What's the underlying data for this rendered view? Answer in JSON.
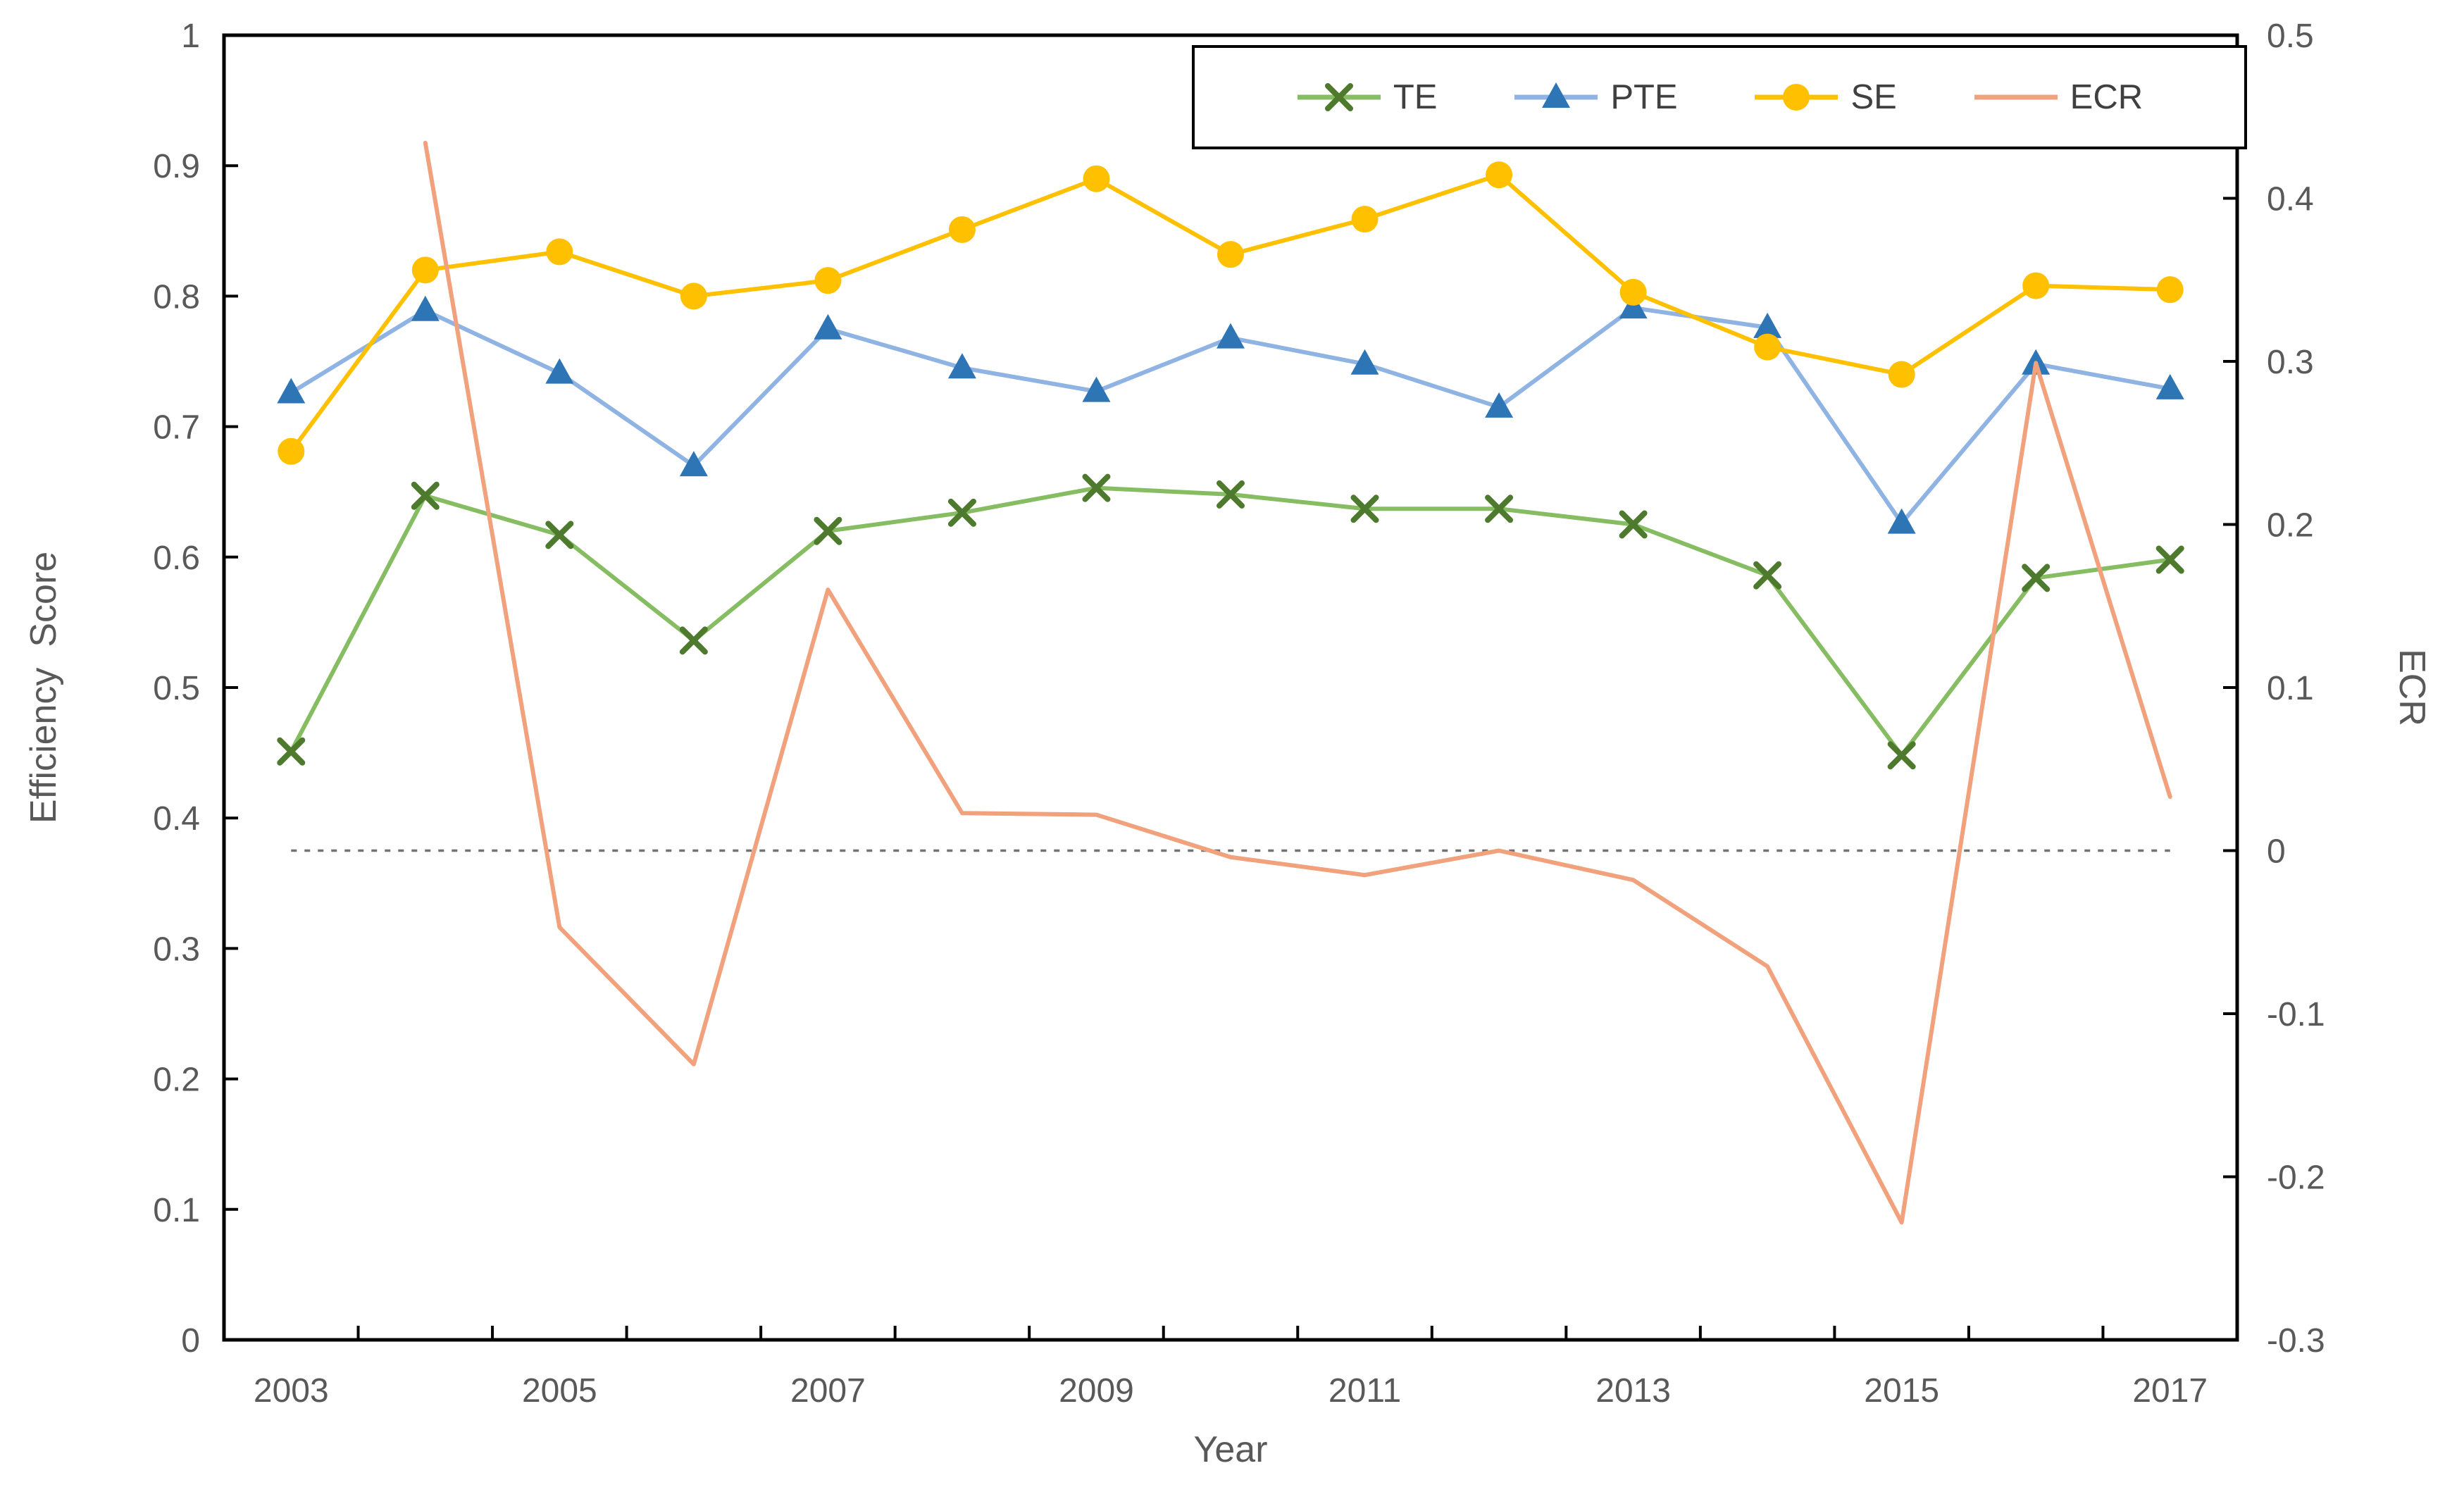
{
  "chart_data": {
    "type": "line",
    "title": "",
    "x": {
      "label": "Year",
      "categories": [
        "2003",
        "2004",
        "2005",
        "2006",
        "2007",
        "2008",
        "2009",
        "2010",
        "2011",
        "2012",
        "2013",
        "2014",
        "2015",
        "2016",
        "2017"
      ],
      "label_indices": [
        0,
        2,
        4,
        6,
        8,
        10,
        12,
        14
      ]
    },
    "y_left": {
      "label": "Efficiency  Score",
      "min": 0,
      "max": 1,
      "tick_values": [
        0,
        0.1,
        0.2,
        0.3,
        0.4,
        0.5,
        0.6,
        0.7,
        0.8,
        0.9,
        1
      ],
      "tick_labels": [
        "0",
        "0.1",
        "0.2",
        "0.3",
        "0.4",
        "0.5",
        "0.6",
        "0.7",
        "0.8",
        "0.9",
        "1"
      ]
    },
    "y_right": {
      "label": "ECR",
      "min": -0.3,
      "max": 0.5,
      "tick_values": [
        0.5,
        0.4,
        0.3,
        0.2,
        0.1,
        0,
        -0.1,
        -0.2,
        -0.3
      ],
      "tick_labels": [
        "0.5",
        "0.4",
        "0.3",
        "0.2",
        "0.1",
        "0",
        "-0.1",
        "-0.2",
        "-0.3"
      ]
    },
    "zero_reference_line": {
      "axis": "right",
      "value": 0,
      "style": "dotted",
      "color": "#737373"
    },
    "series": [
      {
        "name": "TE",
        "axis": "left",
        "marker": "x",
        "line_color": "#87BD62",
        "marker_color": "#4E7A2D",
        "values": [
          0.451,
          0.647,
          0.617,
          0.536,
          0.62,
          0.634,
          0.653,
          0.648,
          0.637,
          0.637,
          0.625,
          0.586,
          0.448,
          0.584,
          0.598
        ]
      },
      {
        "name": "PTE",
        "axis": "left",
        "marker": "triangle",
        "line_color": "#8FB4E3",
        "marker_color": "#2E75B6",
        "values": [
          0.726,
          0.789,
          0.741,
          0.67,
          0.775,
          0.745,
          0.727,
          0.768,
          0.748,
          0.715,
          0.791,
          0.776,
          0.626,
          0.748,
          0.729
        ]
      },
      {
        "name": "SE",
        "axis": "left",
        "marker": "circle",
        "line_color": "#FFC000",
        "marker_color": "#FFC000",
        "values": [
          0.681,
          0.82,
          0.834,
          0.8,
          0.812,
          0.851,
          0.89,
          0.832,
          0.859,
          0.893,
          0.803,
          0.761,
          0.74,
          0.808,
          0.805
        ]
      },
      {
        "name": "ECR",
        "axis": "right",
        "marker": "none",
        "line_color": "#F1A17C",
        "marker_color": "#F1A17C",
        "values": [
          null,
          0.434,
          -0.047,
          -0.131,
          0.16,
          0.023,
          0.022,
          -0.004,
          -0.015,
          0.0,
          -0.018,
          -0.071,
          -0.228,
          0.299,
          0.033
        ]
      }
    ],
    "legend": {
      "position": "top-right",
      "border_color": "#000000",
      "labels": [
        "TE",
        "PTE",
        "SE",
        "ECR"
      ]
    },
    "grid": "off",
    "axis_color": "#000000",
    "tick_text_color": "#595959"
  }
}
